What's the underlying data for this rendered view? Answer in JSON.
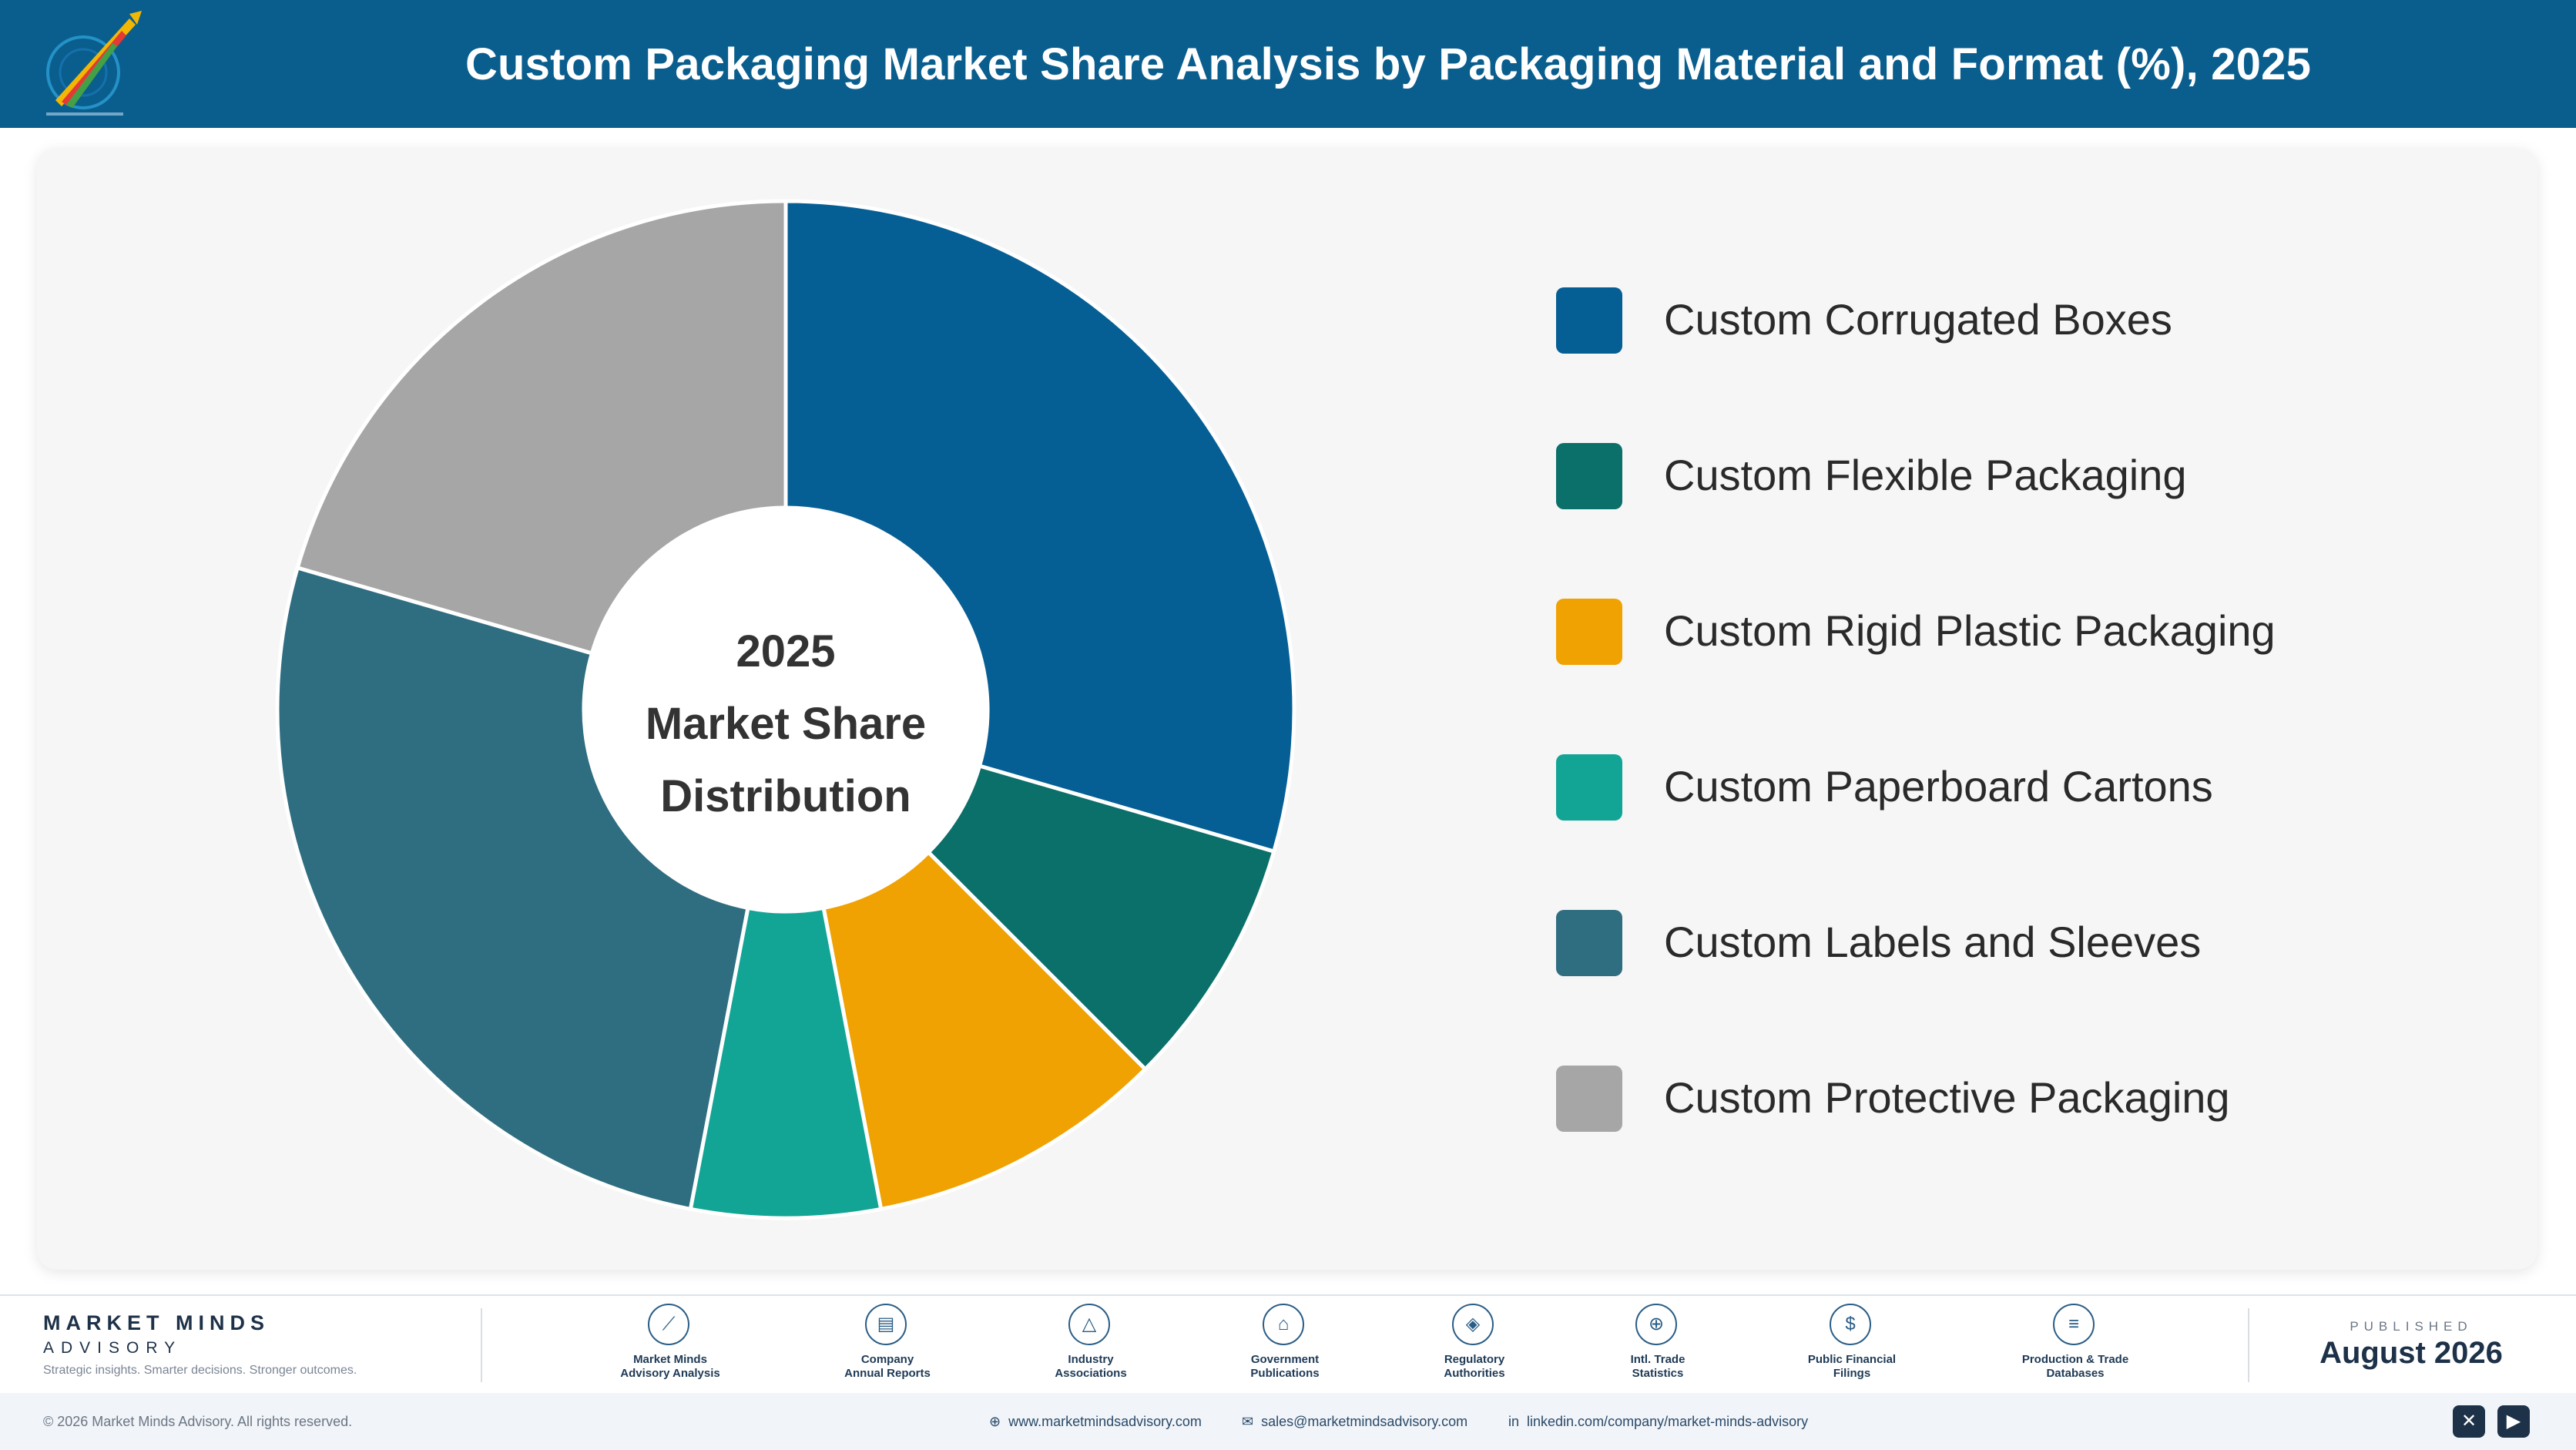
{
  "header": {
    "title": "Custom Packaging Market Share Analysis by Packaging Material and Format (%), 2025"
  },
  "chart_data": {
    "type": "pie",
    "variant": "donut",
    "center_label": [
      "2025",
      "Market Share",
      "Distribution"
    ],
    "categories": [
      "Custom Corrugated Boxes",
      "Custom Flexible Packaging",
      "Custom Rigid Plastic Packaging",
      "Custom Paperboard Cartons",
      "Custom Labels and Sleeves",
      "Custom Protective Packaging"
    ],
    "values": [
      29.5,
      8.0,
      9.5,
      6.0,
      26.5,
      20.5
    ],
    "colors": [
      "#065f94",
      "#0b6f6a",
      "#f0a202",
      "#12a596",
      "#2f6d80",
      "#a6a6a6"
    ],
    "legend_position": "right"
  },
  "footer": {
    "brand_name": "MARKET MINDS",
    "brand_sub": "ADVISORY",
    "tagline": "Strategic insights. Smarter decisions. Stronger outcomes.",
    "sources": [
      {
        "label_lines": [
          "Market Minds",
          "Advisory Analysis"
        ],
        "icon": "chart-line-icon",
        "glyph": "⟋"
      },
      {
        "label_lines": [
          "Company",
          "Annual Reports"
        ],
        "icon": "document-icon",
        "glyph": "▤"
      },
      {
        "label_lines": [
          "Industry",
          "Associations"
        ],
        "icon": "network-icon",
        "glyph": "△"
      },
      {
        "label_lines": [
          "Government",
          "Publications"
        ],
        "icon": "building-icon",
        "glyph": "⌂"
      },
      {
        "label_lines": [
          "Regulatory",
          "Authorities"
        ],
        "icon": "shield-icon",
        "glyph": "◈"
      },
      {
        "label_lines": [
          "Intl. Trade",
          "Statistics"
        ],
        "icon": "globe-icon",
        "glyph": "⊕"
      },
      {
        "label_lines": [
          "Public Financial",
          "Filings"
        ],
        "icon": "dollar-icon",
        "glyph": "$"
      },
      {
        "label_lines": [
          "Production & Trade",
          "Databases"
        ],
        "icon": "database-icon",
        "glyph": "≡"
      }
    ],
    "published_label": "PUBLISHED",
    "published_date": "August 2026",
    "copyright": "© 2026 Market Minds Advisory. All rights reserved.",
    "website": "www.marketmindsadvisory.com",
    "email": "sales@marketmindsadvisory.com",
    "linkedin": "linkedin.com/company/market-minds-advisory",
    "social_icons": [
      "x-icon",
      "youtube-icon"
    ]
  }
}
